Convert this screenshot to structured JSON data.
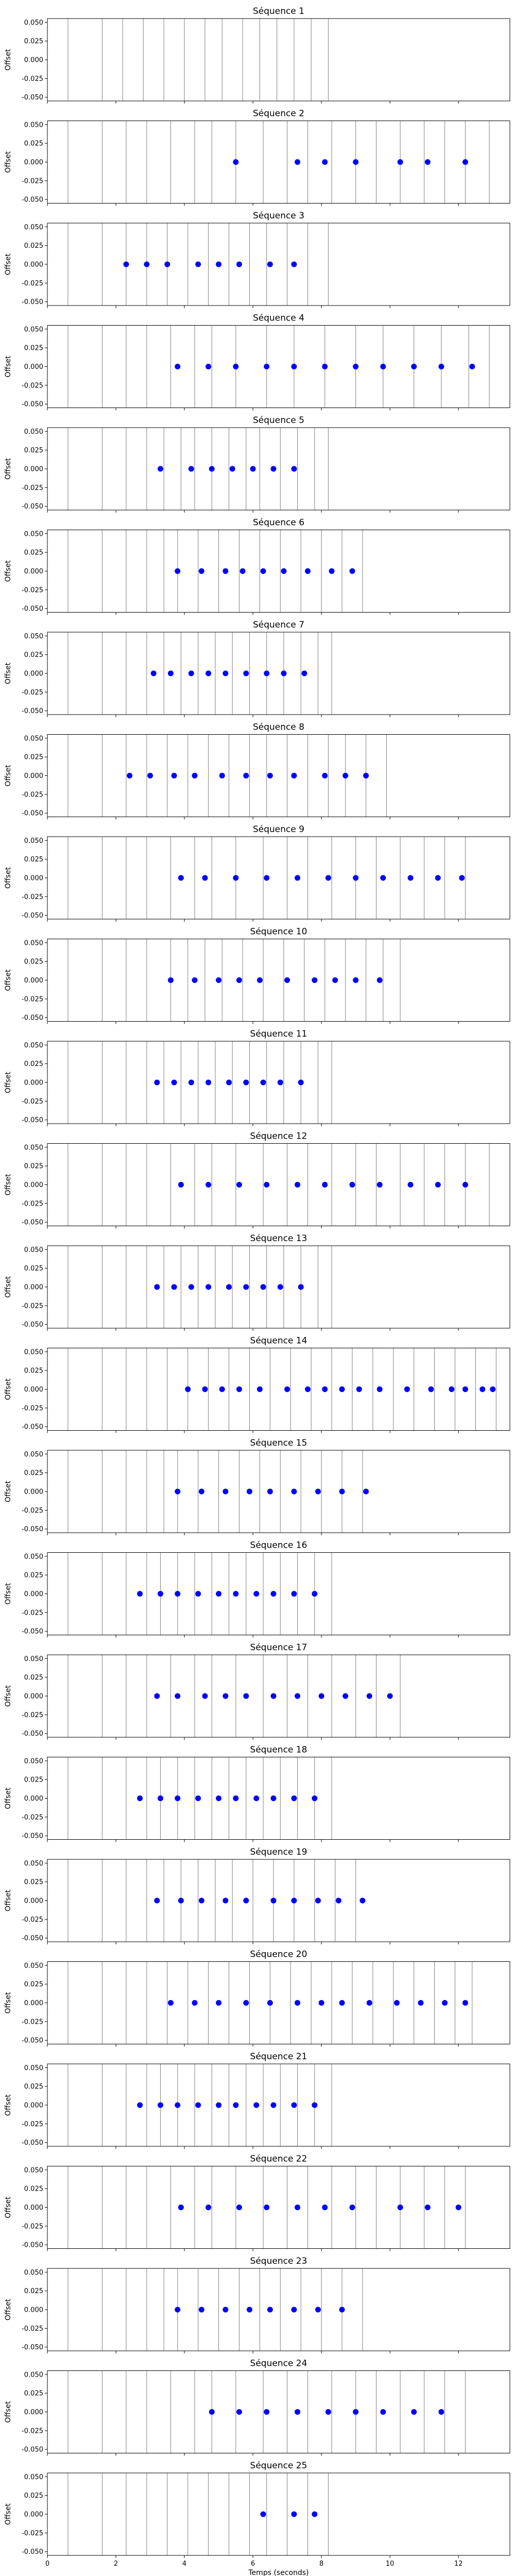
{
  "figure": {
    "xlabel": "Temps (seconds)",
    "ylabel": "Offset",
    "xlim": [
      0,
      13.5
    ],
    "ylim": [
      -0.055,
      0.055
    ],
    "xticks": [
      "0",
      "2",
      "4",
      "6",
      "8",
      "10",
      "12"
    ],
    "yticks": [
      "0.050",
      "0.025",
      "0.000",
      "-0.025",
      "-0.050"
    ],
    "point_color": "#0000ff",
    "grid_line_color": "#7f7f7f"
  },
  "chart_data": [
    {
      "type": "scatter",
      "title": "Séquence 1",
      "vlines": [
        0.6,
        1.6,
        2.2,
        2.8,
        3.4,
        4.0,
        4.6,
        5.1,
        5.7,
        6.2,
        6.7,
        7.2,
        7.7,
        8.2
      ],
      "x": [],
      "y": []
    },
    {
      "type": "scatter",
      "title": "Séquence 2",
      "vlines": [
        0.6,
        1.6,
        2.3,
        2.9,
        3.6,
        4.3,
        4.8,
        5.5,
        6.3,
        7.0,
        7.6,
        8.3,
        9.0,
        9.6,
        10.3,
        11.0,
        11.6,
        12.2,
        12.9
      ],
      "x": [
        5.5,
        7.3,
        8.1,
        9.0,
        10.3,
        11.1,
        12.2
      ],
      "y": [
        0,
        0,
        0,
        0,
        0,
        0,
        0
      ]
    },
    {
      "type": "scatter",
      "title": "Séquence 3",
      "vlines": [
        0.6,
        1.6,
        2.3,
        2.9,
        3.5,
        4.1,
        4.7,
        5.3,
        5.9,
        6.4,
        7.0,
        7.6,
        8.2
      ],
      "x": [
        2.3,
        2.9,
        3.5,
        4.4,
        5.0,
        5.6,
        6.5,
        7.2
      ],
      "y": [
        0,
        0,
        0,
        0,
        0,
        0,
        0,
        0
      ]
    },
    {
      "type": "scatter",
      "title": "Séquence 4",
      "vlines": [
        0.6,
        1.6,
        2.3,
        2.9,
        3.6,
        4.3,
        4.8,
        5.5,
        6.4,
        7.2,
        8.1,
        9.0,
        9.8,
        10.7,
        11.5,
        12.3,
        12.9
      ],
      "x": [
        3.8,
        4.7,
        5.5,
        6.4,
        7.2,
        8.1,
        9.0,
        9.8,
        10.7,
        11.5,
        12.4
      ],
      "y": [
        0,
        0,
        0,
        0,
        0,
        0,
        0,
        0,
        0,
        0,
        0
      ]
    },
    {
      "type": "scatter",
      "title": "Séquence 5",
      "vlines": [
        0.6,
        1.6,
        2.3,
        2.9,
        3.4,
        3.9,
        4.3,
        4.8,
        5.3,
        5.8,
        6.2,
        6.8,
        7.3,
        7.8,
        8.2
      ],
      "x": [
        3.3,
        4.2,
        4.8,
        5.4,
        6.0,
        6.6,
        7.2
      ],
      "y": [
        0,
        0,
        0,
        0,
        0,
        0,
        0
      ]
    },
    {
      "type": "scatter",
      "title": "Séquence 6",
      "vlines": [
        0.6,
        1.6,
        2.3,
        2.9,
        3.4,
        3.8,
        4.4,
        5.0,
        5.6,
        6.2,
        6.8,
        7.4,
        8.0,
        8.6,
        9.2
      ],
      "x": [
        3.8,
        4.5,
        5.2,
        5.7,
        6.3,
        6.9,
        7.6,
        8.3,
        8.9
      ],
      "y": [
        0,
        0,
        0,
        0,
        0,
        0,
        0,
        0,
        0
      ]
    },
    {
      "type": "scatter",
      "title": "Séquence 7",
      "vlines": [
        0.6,
        1.6,
        2.3,
        2.9,
        3.4,
        3.9,
        4.4,
        4.9,
        5.4,
        5.9,
        6.4,
        6.9,
        7.4,
        7.9,
        8.3
      ],
      "x": [
        3.1,
        3.6,
        4.2,
        4.7,
        5.2,
        5.8,
        6.4,
        6.9,
        7.5
      ],
      "y": [
        0,
        0,
        0,
        0,
        0,
        0,
        0,
        0,
        0
      ]
    },
    {
      "type": "scatter",
      "title": "Séquence 8",
      "vlines": [
        0.6,
        1.6,
        2.3,
        2.9,
        3.5,
        4.1,
        4.7,
        5.3,
        5.9,
        6.4,
        7.0,
        7.6,
        8.2,
        8.7,
        9.3,
        9.9
      ],
      "x": [
        2.4,
        3.0,
        3.7,
        4.3,
        5.1,
        5.8,
        6.5,
        7.2,
        8.1,
        8.7,
        9.3
      ],
      "y": [
        0,
        0,
        0,
        0,
        0,
        0,
        0,
        0,
        0,
        0,
        0
      ]
    },
    {
      "type": "scatter",
      "title": "Séquence 9",
      "vlines": [
        0.6,
        1.6,
        2.3,
        2.9,
        3.6,
        4.3,
        4.8,
        5.5,
        6.3,
        7.0,
        7.6,
        8.3,
        9.0,
        9.6,
        10.3,
        11.0,
        11.6,
        12.2
      ],
      "x": [
        3.9,
        4.6,
        5.5,
        6.4,
        7.3,
        8.2,
        9.0,
        9.8,
        10.6,
        11.4,
        12.1
      ],
      "y": [
        0,
        0,
        0,
        0,
        0,
        0,
        0,
        0,
        0,
        0,
        0
      ]
    },
    {
      "type": "scatter",
      "title": "Séquence 10",
      "vlines": [
        0.6,
        1.6,
        2.3,
        2.9,
        3.6,
        4.1,
        4.6,
        5.1,
        5.7,
        6.3,
        6.9,
        7.5,
        8.1,
        8.7,
        9.3,
        9.8,
        10.3
      ],
      "x": [
        3.6,
        4.3,
        5.0,
        5.6,
        6.2,
        7.0,
        7.8,
        8.4,
        9.0,
        9.7
      ],
      "y": [
        0,
        0,
        0,
        0,
        0,
        0,
        0,
        0,
        0,
        0
      ]
    },
    {
      "type": "scatter",
      "title": "Séquence 11",
      "vlines": [
        0.6,
        1.6,
        2.3,
        2.9,
        3.4,
        3.9,
        4.4,
        4.9,
        5.4,
        5.9,
        6.4,
        6.9,
        7.4,
        7.9,
        8.3
      ],
      "x": [
        3.2,
        3.7,
        4.2,
        4.7,
        5.3,
        5.8,
        6.3,
        6.8,
        7.4
      ],
      "y": [
        0,
        0,
        0,
        0,
        0,
        0,
        0,
        0,
        0
      ]
    },
    {
      "type": "scatter",
      "title": "Séquence 12",
      "vlines": [
        0.6,
        1.6,
        2.3,
        2.9,
        3.6,
        4.3,
        4.8,
        5.5,
        6.3,
        7.0,
        7.6,
        8.3,
        9.0,
        9.6,
        10.3,
        11.0,
        11.6,
        12.2,
        12.9
      ],
      "x": [
        3.9,
        4.7,
        5.6,
        6.4,
        7.3,
        8.1,
        8.9,
        9.7,
        10.6,
        11.4,
        12.2
      ],
      "y": [
        0,
        0,
        0,
        0,
        0,
        0,
        0,
        0,
        0,
        0,
        0
      ]
    },
    {
      "type": "scatter",
      "title": "Séquence 13",
      "vlines": [
        0.6,
        1.6,
        2.3,
        2.9,
        3.4,
        3.9,
        4.4,
        4.9,
        5.4,
        5.9,
        6.4,
        6.9,
        7.4,
        7.9,
        8.3
      ],
      "x": [
        3.2,
        3.7,
        4.2,
        4.7,
        5.3,
        5.8,
        6.3,
        6.8,
        7.4
      ],
      "y": [
        0,
        0,
        0,
        0,
        0,
        0,
        0,
        0,
        0
      ]
    },
    {
      "type": "scatter",
      "title": "Séquence 14",
      "vlines": [
        0.6,
        1.6,
        2.3,
        2.9,
        3.5,
        4.1,
        4.7,
        5.3,
        5.9,
        6.5,
        7.1,
        7.7,
        8.3,
        8.9,
        9.5,
        10.1,
        10.7,
        11.3,
        11.9,
        12.5,
        13.1
      ],
      "x": [
        4.1,
        4.6,
        5.1,
        5.6,
        6.2,
        7.0,
        7.6,
        8.1,
        8.6,
        9.1,
        9.7,
        10.5,
        11.2,
        11.8,
        12.2,
        12.7,
        13.0
      ],
      "y": [
        0,
        0,
        0,
        0,
        0,
        0,
        0,
        0,
        0,
        0,
        0,
        0,
        0,
        0,
        0,
        0,
        0
      ]
    },
    {
      "type": "scatter",
      "title": "Séquence 15",
      "vlines": [
        0.6,
        1.6,
        2.3,
        2.9,
        3.4,
        3.8,
        4.4,
        5.0,
        5.6,
        6.2,
        6.8,
        7.4,
        8.0,
        8.6,
        9.2
      ],
      "x": [
        3.8,
        4.5,
        5.2,
        5.9,
        6.5,
        7.2,
        7.9,
        8.6,
        9.3
      ],
      "y": [
        0,
        0,
        0,
        0,
        0,
        0,
        0,
        0,
        0
      ]
    },
    {
      "type": "scatter",
      "title": "Séquence 16",
      "vlines": [
        0.6,
        1.6,
        2.3,
        2.9,
        3.3,
        3.8,
        4.3,
        4.8,
        5.3,
        5.8,
        6.3,
        6.8,
        7.3,
        7.8,
        8.3
      ],
      "x": [
        2.7,
        3.3,
        3.8,
        4.4,
        5.0,
        5.5,
        6.1,
        6.6,
        7.2,
        7.8
      ],
      "y": [
        0,
        0,
        0,
        0,
        0,
        0,
        0,
        0,
        0,
        0
      ]
    },
    {
      "type": "scatter",
      "title": "Séquence 17",
      "vlines": [
        0.6,
        1.6,
        2.3,
        2.9,
        3.6,
        4.3,
        4.8,
        5.5,
        6.3,
        7.0,
        7.6,
        8.3,
        9.0,
        9.6,
        10.3
      ],
      "x": [
        3.2,
        3.8,
        4.6,
        5.2,
        5.8,
        6.6,
        7.3,
        8.0,
        8.7,
        9.4,
        10.0
      ],
      "y": [
        0,
        0,
        0,
        0,
        0,
        0,
        0,
        0,
        0,
        0,
        0
      ]
    },
    {
      "type": "scatter",
      "title": "Séquence 18",
      "vlines": [
        0.6,
        1.6,
        2.3,
        2.9,
        3.3,
        3.8,
        4.3,
        4.8,
        5.3,
        5.8,
        6.3,
        6.8,
        7.3,
        7.8,
        8.3
      ],
      "x": [
        2.7,
        3.3,
        3.8,
        4.4,
        5.0,
        5.5,
        6.1,
        6.6,
        7.2,
        7.8
      ],
      "y": [
        0,
        0,
        0,
        0,
        0,
        0,
        0,
        0,
        0,
        0
      ]
    },
    {
      "type": "scatter",
      "title": "Séquence 19",
      "vlines": [
        0.6,
        1.6,
        2.3,
        2.9,
        3.4,
        3.9,
        4.4,
        4.9,
        5.4,
        6.0,
        6.6,
        7.2,
        7.8,
        8.4,
        9.0
      ],
      "x": [
        3.2,
        3.9,
        4.5,
        5.2,
        5.8,
        6.6,
        7.2,
        7.9,
        8.5,
        9.2
      ],
      "y": [
        0,
        0,
        0,
        0,
        0,
        0,
        0,
        0,
        0,
        0
      ]
    },
    {
      "type": "scatter",
      "title": "Séquence 20",
      "vlines": [
        0.6,
        1.6,
        2.3,
        2.9,
        3.5,
        4.1,
        4.7,
        5.3,
        5.9,
        6.5,
        7.1,
        7.7,
        8.3,
        8.9,
        9.5,
        10.1,
        10.7,
        11.3,
        11.9,
        12.4
      ],
      "x": [
        3.6,
        4.3,
        5.0,
        5.8,
        6.5,
        7.3,
        8.0,
        8.6,
        9.4,
        10.2,
        10.9,
        11.6,
        12.2
      ],
      "y": [
        0,
        0,
        0,
        0,
        0,
        0,
        0,
        0,
        0,
        0,
        0,
        0,
        0
      ]
    },
    {
      "type": "scatter",
      "title": "Séquence 21",
      "vlines": [
        0.6,
        1.6,
        2.3,
        2.9,
        3.3,
        3.8,
        4.3,
        4.8,
        5.3,
        5.8,
        6.3,
        6.8,
        7.3,
        7.8,
        8.3
      ],
      "x": [
        2.7,
        3.3,
        3.8,
        4.4,
        5.0,
        5.5,
        6.1,
        6.6,
        7.2,
        7.8
      ],
      "y": [
        0,
        0,
        0,
        0,
        0,
        0,
        0,
        0,
        0,
        0
      ]
    },
    {
      "type": "scatter",
      "title": "Séquence 22",
      "vlines": [
        0.6,
        1.6,
        2.3,
        2.9,
        3.6,
        4.3,
        4.8,
        5.5,
        6.3,
        7.0,
        7.6,
        8.3,
        9.0,
        9.6,
        10.3,
        11.0,
        11.6,
        12.2
      ],
      "x": [
        3.9,
        4.7,
        5.6,
        6.4,
        7.3,
        8.1,
        8.9,
        10.3,
        11.1,
        12.0
      ],
      "y": [
        0,
        0,
        0,
        0,
        0,
        0,
        0,
        0,
        0,
        0
      ]
    },
    {
      "type": "scatter",
      "title": "Séquence 23",
      "vlines": [
        0.6,
        1.6,
        2.3,
        2.9,
        3.4,
        3.8,
        4.4,
        5.0,
        5.6,
        6.2,
        6.8,
        7.4,
        8.0,
        8.6,
        9.2
      ],
      "x": [
        3.8,
        4.5,
        5.2,
        5.9,
        6.5,
        7.2,
        7.9,
        8.6
      ],
      "y": [
        0,
        0,
        0,
        0,
        0,
        0,
        0,
        0
      ]
    },
    {
      "type": "scatter",
      "title": "Séquence 24",
      "vlines": [
        0.6,
        1.6,
        2.3,
        2.9,
        3.6,
        4.3,
        4.8,
        5.5,
        6.3,
        7.0,
        7.6,
        8.3,
        9.0,
        9.6,
        10.3,
        11.0,
        11.6,
        12.2
      ],
      "x": [
        4.8,
        5.6,
        6.4,
        7.3,
        8.2,
        9.0,
        9.8,
        10.7,
        11.5
      ],
      "y": [
        0,
        0,
        0,
        0,
        0,
        0,
        0,
        0,
        0
      ]
    },
    {
      "type": "scatter",
      "title": "Séquence 25",
      "vlines": [
        0.6,
        1.6,
        2.3,
        2.9,
        3.5,
        4.1,
        4.7,
        5.3,
        5.9,
        6.4,
        7.0,
        7.6,
        8.2
      ],
      "x": [
        6.3,
        7.2,
        7.8
      ],
      "y": [
        0,
        0,
        0
      ]
    }
  ]
}
